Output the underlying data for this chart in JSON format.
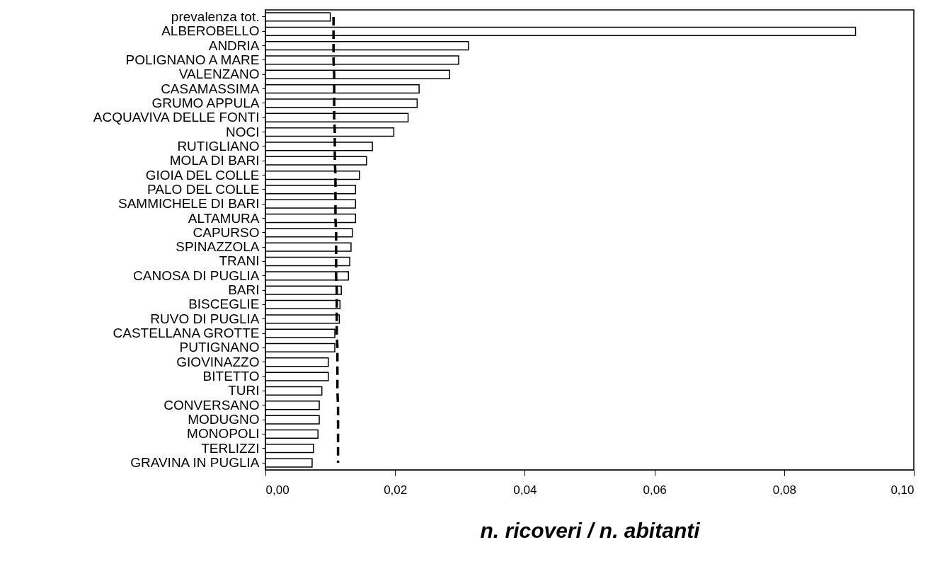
{
  "chart_data": {
    "type": "bar",
    "orientation": "horizontal",
    "xlabel": "n. ricoveri / n. abitanti",
    "categories": [
      "prevalenza tot.",
      "ALBEROBELLO",
      "ANDRIA",
      "POLIGNANO A MARE",
      "VALENZANO",
      "CASAMASSIMA",
      "GRUMO APPULA",
      "ACQUAVIVA DELLE FONTI",
      "NOCI",
      "RUTIGLIANO",
      "MOLA DI BARI",
      "GIOIA DEL COLLE",
      "PALO DEL COLLE",
      "SAMMICHELE DI BARI",
      "ALTAMURA",
      "CAPURSO",
      "SPINAZZOLA",
      "TRANI",
      "CANOSA DI PUGLIA",
      "BARI",
      "BISCEGLIE",
      "RUVO DI PUGLIA",
      "CASTELLANA GROTTE",
      "PUTIGNANO",
      "GIOVINAZZO",
      "BITETTO",
      "TURI",
      "CONVERSANO",
      "MODUGNO",
      "MONOPOLI",
      "TERLIZZI",
      "GRAVINA IN PUGLIA"
    ],
    "series": [
      {
        "color": "#ffffff",
        "values": [
          0.01,
          0.091,
          0.0313,
          0.0298,
          0.0284,
          0.0237,
          0.0234,
          0.022,
          0.0198,
          0.0165,
          0.0156,
          0.0145,
          0.0139,
          0.0139,
          0.0139,
          0.0134,
          0.0132,
          0.013,
          0.0128,
          0.0117,
          0.0115,
          0.0114,
          0.0107,
          0.0107,
          0.0097,
          0.0097,
          0.0087,
          0.0083,
          0.0083,
          0.0081,
          0.0074,
          0.0072
        ]
      },
      {
        "type": "line",
        "color": "#000000",
        "line_style": "dashed",
        "values": [
          0.0105,
          0.0105,
          0.0105,
          0.0105,
          0.0106,
          0.0106,
          0.0106,
          0.0106,
          0.0107,
          0.0107,
          0.0107,
          0.0108,
          0.0108,
          0.0108,
          0.0108,
          0.0109,
          0.0109,
          0.0109,
          0.0109,
          0.011,
          0.011,
          0.011,
          0.011,
          0.0111,
          0.0111,
          0.0111,
          0.0111,
          0.0112,
          0.0112,
          0.0112,
          0.0112,
          0.0112
        ]
      }
    ],
    "xlim": [
      0,
      0.1
    ],
    "xticks": [
      {
        "value": 0,
        "label": "0,00"
      },
      {
        "value": 0.02,
        "label": "0,02"
      },
      {
        "value": 0.04,
        "label": "0,04"
      },
      {
        "value": 0.06,
        "label": "0,06"
      },
      {
        "value": 0.08,
        "label": "0,08"
      },
      {
        "value": 0.1,
        "label": "0,10"
      }
    ],
    "grid": false
  }
}
